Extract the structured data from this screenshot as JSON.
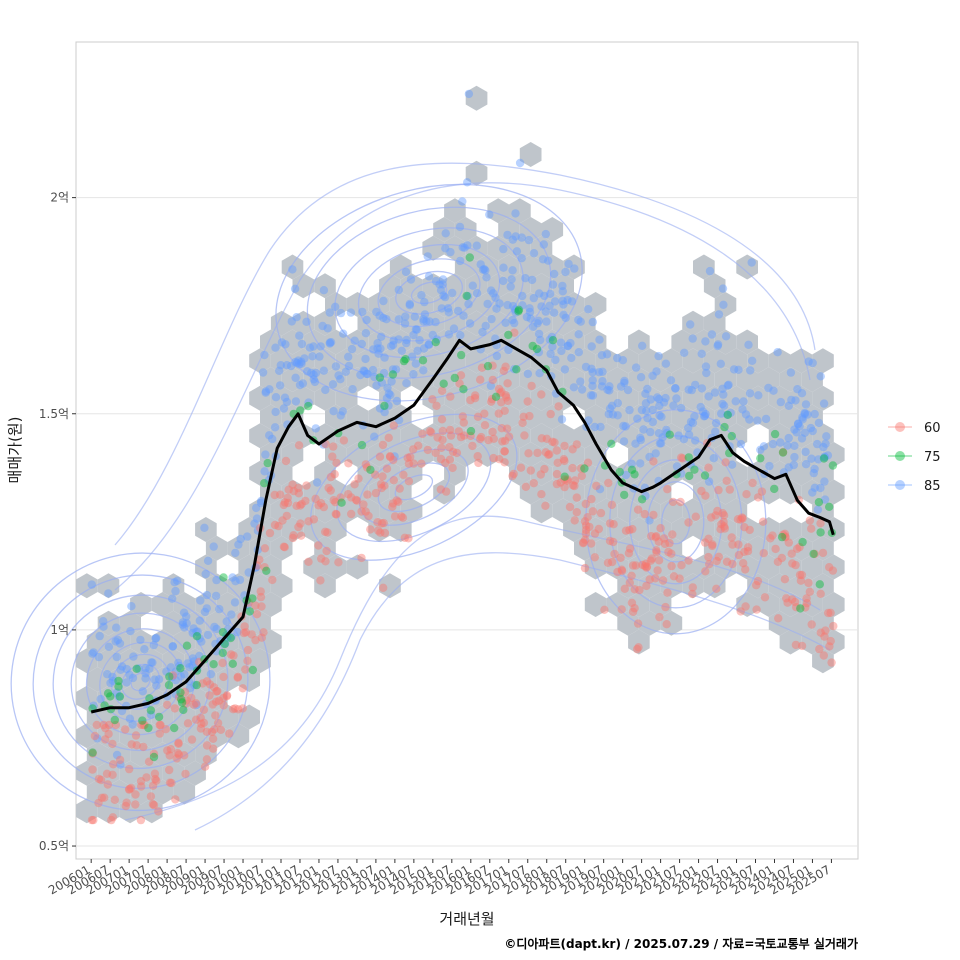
{
  "chart_data": {
    "type": "scatter",
    "xlabel": "거래년월",
    "ylabel": "매매가(원)",
    "caption": "©디아파트(dapt.kr) / 2025.07.29 / 자료=국토교통부 실거래가",
    "x_tick_labels": [
      "200601",
      "200607",
      "200701",
      "200707",
      "200801",
      "200807",
      "200901",
      "200907",
      "201001",
      "201007",
      "201101",
      "201107",
      "201201",
      "201207",
      "201301",
      "201307",
      "201401",
      "201407",
      "201501",
      "201507",
      "201601",
      "201607",
      "201701",
      "201707",
      "201801",
      "201807",
      "201901",
      "201907",
      "202001",
      "202007",
      "202101",
      "202107",
      "202201",
      "202207",
      "202301",
      "202307",
      "202401",
      "202407",
      "202501",
      "202507"
    ],
    "y_ticks": [
      {
        "value": 0.5,
        "label": "0.5억"
      },
      {
        "value": 1.0,
        "label": "1억"
      },
      {
        "value": 1.5,
        "label": "1.5억"
      },
      {
        "value": 2.0,
        "label": "2억"
      }
    ],
    "ylim": [
      0.47,
      2.36
    ],
    "x_range_years": [
      2005.6,
      2026.2
    ],
    "unit": "억원",
    "legend": {
      "title": "",
      "entries": [
        {
          "name": "60",
          "color": "#F8766D"
        },
        {
          "name": "75",
          "color": "#00BA38"
        },
        {
          "name": "85",
          "color": "#619CFF"
        }
      ]
    },
    "hexbin_color": "#BFC5CB",
    "series": [
      {
        "name": "moving-average",
        "color": "#000000",
        "points": [
          [
            2006.0,
            0.81
          ],
          [
            2006.5,
            0.82
          ],
          [
            2007.0,
            0.82
          ],
          [
            2007.5,
            0.83
          ],
          [
            2008.0,
            0.85
          ],
          [
            2008.5,
            0.88
          ],
          [
            2009.0,
            0.93
          ],
          [
            2009.5,
            0.98
          ],
          [
            2010.0,
            1.03
          ],
          [
            2010.3,
            1.15
          ],
          [
            2010.6,
            1.3
          ],
          [
            2010.9,
            1.42
          ],
          [
            2011.2,
            1.47
          ],
          [
            2011.45,
            1.5
          ],
          [
            2011.7,
            1.45
          ],
          [
            2012.0,
            1.43
          ],
          [
            2012.5,
            1.46
          ],
          [
            2013.0,
            1.48
          ],
          [
            2013.5,
            1.47
          ],
          [
            2014.0,
            1.49
          ],
          [
            2014.5,
            1.52
          ],
          [
            2015.0,
            1.58
          ],
          [
            2015.4,
            1.63
          ],
          [
            2015.7,
            1.67
          ],
          [
            2016.0,
            1.65
          ],
          [
            2016.5,
            1.66
          ],
          [
            2016.8,
            1.67
          ],
          [
            2017.2,
            1.65
          ],
          [
            2017.6,
            1.63
          ],
          [
            2018.0,
            1.6
          ],
          [
            2018.3,
            1.55
          ],
          [
            2018.7,
            1.52
          ],
          [
            2019.0,
            1.48
          ],
          [
            2019.3,
            1.43
          ],
          [
            2019.7,
            1.37
          ],
          [
            2020.0,
            1.34
          ],
          [
            2020.5,
            1.32
          ],
          [
            2020.8,
            1.33
          ],
          [
            2021.0,
            1.34
          ],
          [
            2021.5,
            1.37
          ],
          [
            2022.0,
            1.4
          ],
          [
            2022.3,
            1.44
          ],
          [
            2022.6,
            1.45
          ],
          [
            2022.9,
            1.41
          ],
          [
            2023.2,
            1.39
          ],
          [
            2023.6,
            1.37
          ],
          [
            2024.0,
            1.35
          ],
          [
            2024.3,
            1.36
          ],
          [
            2024.6,
            1.3
          ],
          [
            2024.9,
            1.27
          ],
          [
            2025.2,
            1.26
          ],
          [
            2025.45,
            1.25
          ],
          [
            2025.55,
            1.22
          ]
        ]
      }
    ],
    "density_centers": [
      {
        "x": 2007.3,
        "y": 0.88
      },
      {
        "x": 2014.9,
        "y": 1.78
      },
      {
        "x": 2014.5,
        "y": 1.33
      },
      {
        "x": 2021.4,
        "y": 1.25
      }
    ]
  }
}
